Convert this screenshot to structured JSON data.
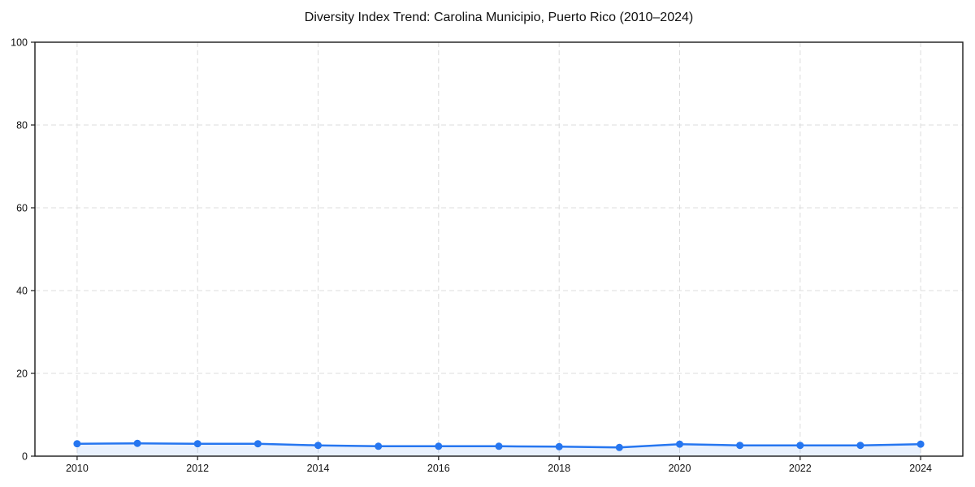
{
  "chart_data": {
    "type": "line",
    "title": "Diversity Index Trend: Carolina Municipio, Puerto Rico (2010–2024)",
    "x": [
      2010,
      2011,
      2012,
      2013,
      2014,
      2015,
      2016,
      2017,
      2018,
      2019,
      2020,
      2021,
      2022,
      2023,
      2024
    ],
    "series": [
      {
        "name": "Diversity Index",
        "values": [
          3.0,
          3.1,
          3.0,
          3.0,
          2.6,
          2.4,
          2.4,
          2.4,
          2.3,
          2.1,
          2.9,
          2.6,
          2.6,
          2.6,
          2.9
        ]
      }
    ],
    "xlabel": "",
    "ylabel": "",
    "xlim": [
      2009.3,
      2024.7
    ],
    "ylim": [
      0,
      100
    ],
    "xticks": [
      2010,
      2012,
      2014,
      2016,
      2018,
      2020,
      2022,
      2024
    ],
    "yticks": [
      0,
      20,
      40,
      60,
      80,
      100
    ],
    "grid": true,
    "grid_style": "dashed",
    "legend_position": "none",
    "marker": "circle",
    "area_fill": true,
    "colors": {
      "line": "#2676f0",
      "marker": "#2676f0",
      "area": "rgba(38,118,240,0.10)",
      "grid": "#dcdcdc",
      "spine": "#1a1a1a",
      "text": "#111111",
      "background": "#ffffff"
    }
  }
}
